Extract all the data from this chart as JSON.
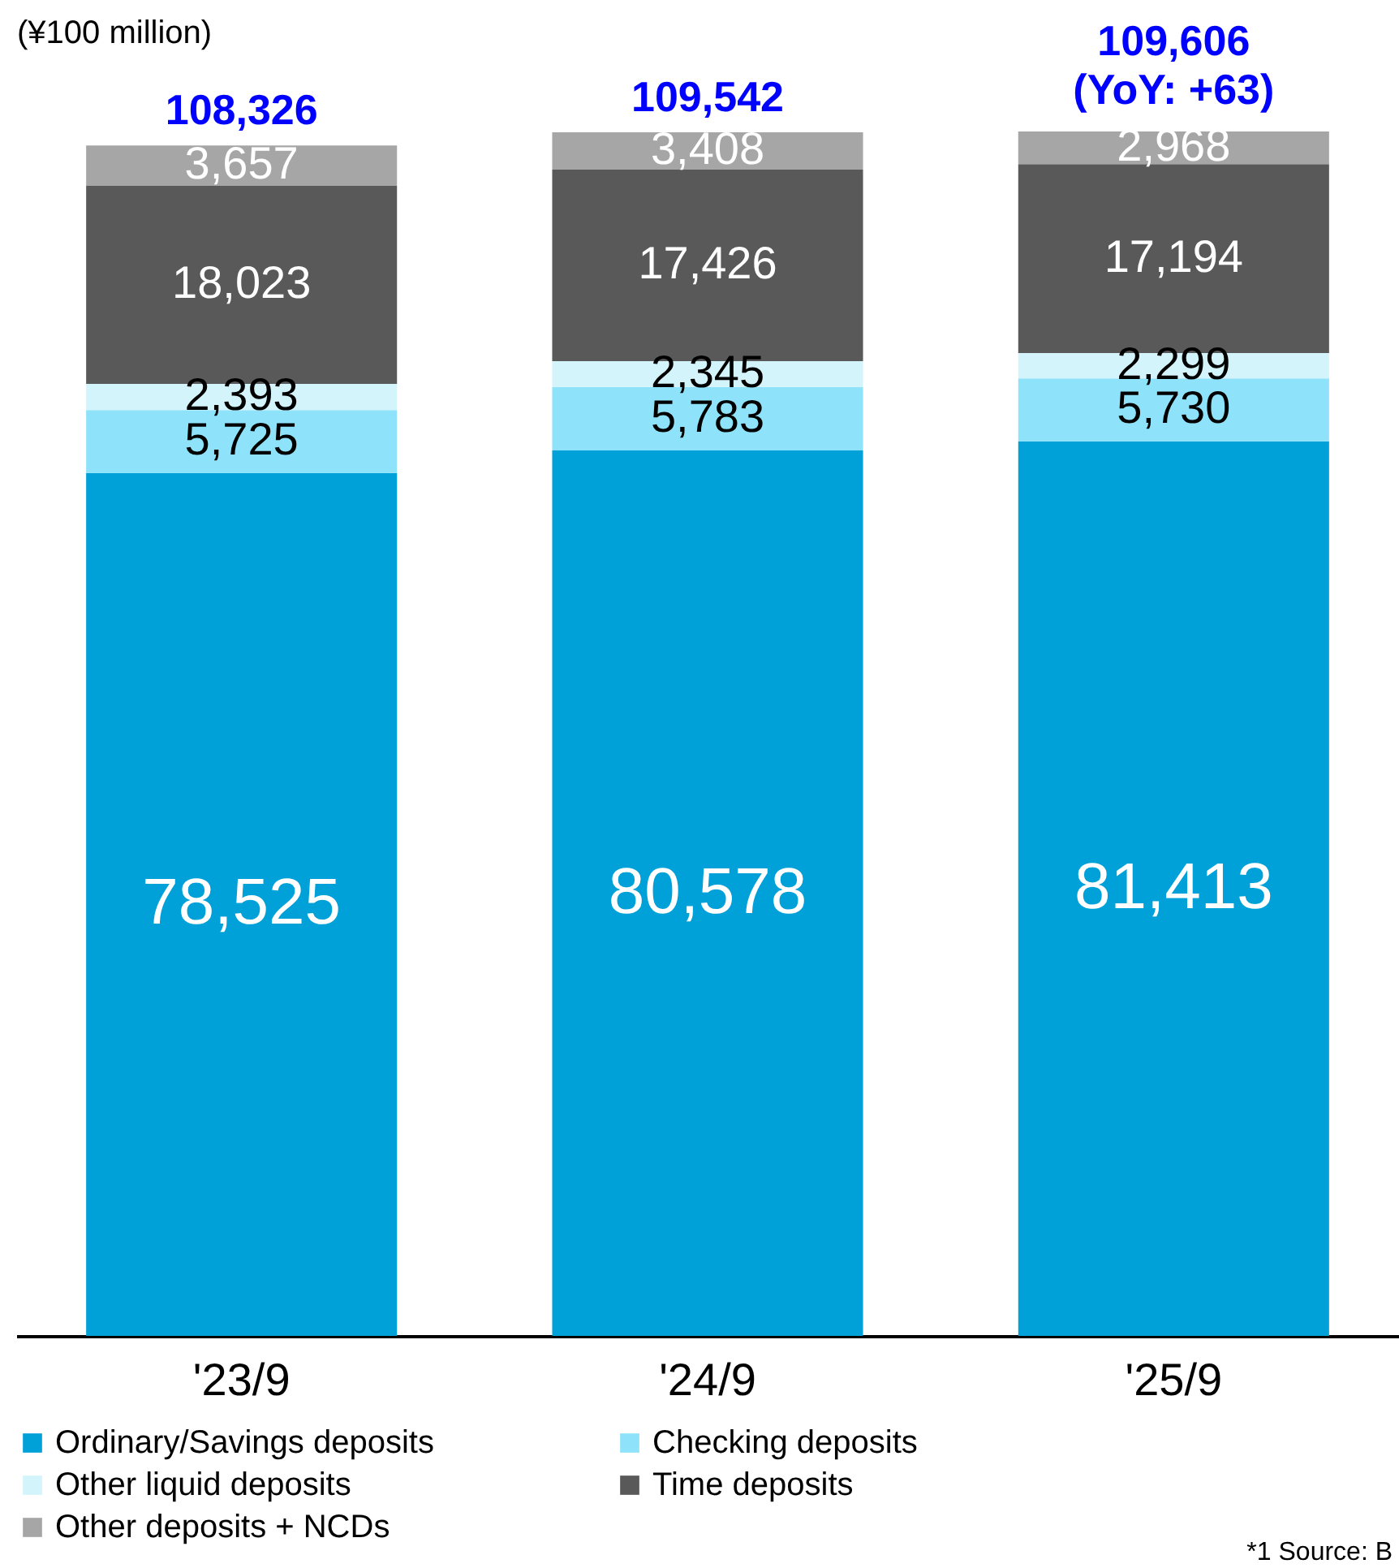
{
  "chart_data": {
    "type": "bar",
    "stacked": true,
    "ylabel": "(¥100 million)",
    "tick_labels": "x",
    "categories": [
      "'23/9",
      "'24/9",
      "'25/9"
    ],
    "series": [
      {
        "name": "Ordinary/Savings deposits",
        "color": "#00a0d8",
        "values": [
          78525,
          80578,
          81413
        ],
        "value_labels": [
          "78,525",
          "80,578",
          "81,413"
        ]
      },
      {
        "name": "Checking deposits",
        "color": "#8ee3fa",
        "values": [
          5725,
          5783,
          5730
        ],
        "value_labels": [
          "5,725",
          "5,783",
          "5,730"
        ]
      },
      {
        "name": "Other liquid deposits",
        "color": "#d4f4fb",
        "values": [
          2393,
          2345,
          2299
        ],
        "value_labels": [
          "2,393",
          "2,345",
          "2,299"
        ]
      },
      {
        "name": "Time deposits",
        "color": "#595959",
        "values": [
          18023,
          17426,
          17194
        ],
        "value_labels": [
          "18,023",
          "17,426",
          "17,194"
        ]
      },
      {
        "name": "Other deposits + NCDs",
        "color": "#a6a6a6",
        "values": [
          3657,
          3408,
          2968
        ],
        "value_labels": [
          "3,657",
          "3,408",
          "2,968"
        ]
      }
    ],
    "totals": [
      "108,326",
      "109,542",
      "109,606"
    ],
    "annotations": [
      {
        "text": "(YoY: +63)",
        "x": "'25/9",
        "y": 109606
      },
      "*1  Source: B"
    ],
    "legend": "bottom",
    "grid": false
  }
}
